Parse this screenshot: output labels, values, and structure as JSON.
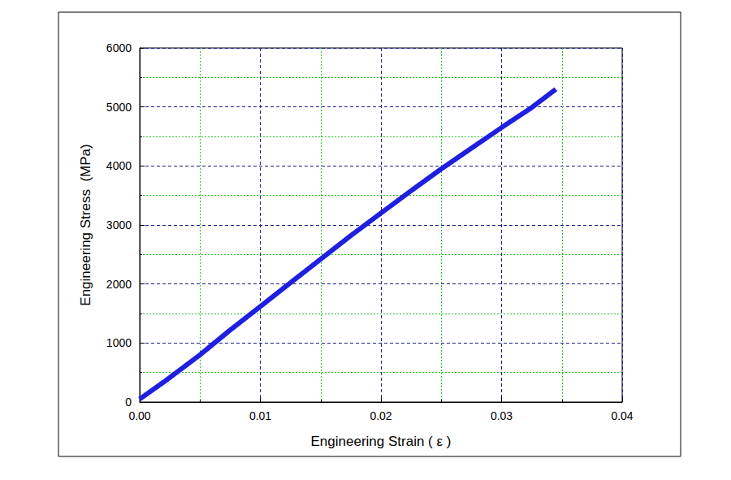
{
  "chart_data": {
    "type": "line",
    "x_label": "Engineering Strain ( ε )",
    "y_label": "Engineering Stress  (MPa)",
    "x": [
      0.0,
      0.002,
      0.005,
      0.0075,
      0.01,
      0.0125,
      0.015,
      0.0175,
      0.02,
      0.0225,
      0.025,
      0.0275,
      0.03,
      0.0325,
      0.0345
    ],
    "values": [
      50,
      340,
      800,
      1220,
      1620,
      2020,
      2420,
      2820,
      3200,
      3580,
      3950,
      4300,
      4650,
      4990,
      5300
    ],
    "color": "#1f1fe0",
    "line_style": "solid",
    "xlim": [
      0,
      0.04
    ],
    "xticks": [
      {
        "value": 0,
        "label": "0.00"
      },
      {
        "value": 0.01,
        "label": "0.01"
      },
      {
        "value": 0.02,
        "label": "0.02"
      },
      {
        "value": 0.03,
        "label": "0.03"
      },
      {
        "value": 0.04,
        "label": "0.04"
      }
    ],
    "ylim": [
      0,
      6000
    ],
    "yticks": [
      0,
      1000,
      2000,
      3000,
      4000,
      5000,
      6000
    ],
    "grid": true
  }
}
